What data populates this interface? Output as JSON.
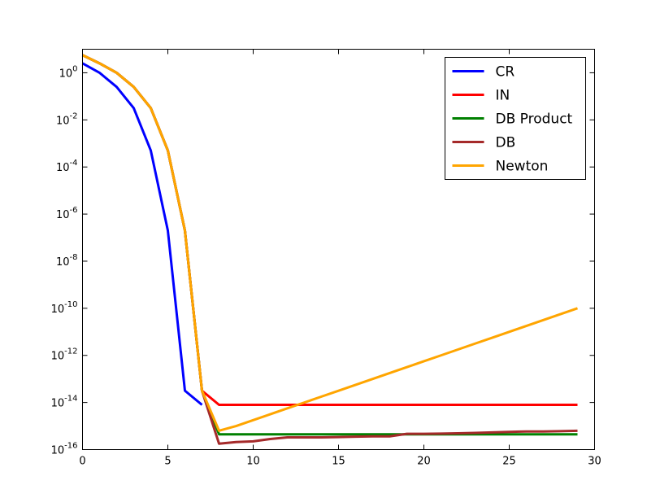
{
  "chart_data": {
    "type": "line",
    "title": "",
    "xlabel": "",
    "ylabel": "",
    "xlim": [
      0,
      30
    ],
    "ylim_exp": [
      -16,
      1
    ],
    "y_scale": "log",
    "grid": false,
    "legend_position": "top-right",
    "x_ticks": [
      "0",
      "5",
      "10",
      "15",
      "20",
      "25",
      "30"
    ],
    "y_ticks": [
      {
        "base": "10",
        "exp": "-16"
      },
      {
        "base": "10",
        "exp": "-14"
      },
      {
        "base": "10",
        "exp": "-12"
      },
      {
        "base": "10",
        "exp": "-10"
      },
      {
        "base": "10",
        "exp": "-8"
      },
      {
        "base": "10",
        "exp": "-6"
      },
      {
        "base": "10",
        "exp": "-4"
      },
      {
        "base": "10",
        "exp": "-2"
      },
      {
        "base": "10",
        "exp": "0"
      }
    ],
    "x": [
      0,
      1,
      2,
      3,
      4,
      5,
      6,
      7,
      8,
      9,
      10,
      11,
      12,
      13,
      14,
      15,
      16,
      17,
      18,
      19,
      20,
      21,
      22,
      23,
      24,
      25,
      26,
      27,
      28,
      29
    ],
    "series": [
      {
        "name": "CR",
        "color": "#0000ff",
        "y_exp": [
          0.4,
          0.0,
          -0.6,
          -1.5,
          -3.3,
          -6.7,
          -13.5,
          -14.1,
          null,
          null,
          null,
          null,
          null,
          null,
          null,
          null,
          null,
          null,
          null,
          null,
          null,
          null,
          null,
          null,
          null,
          null,
          null,
          null,
          null,
          null
        ]
      },
      {
        "name": "IN",
        "color": "#ff0000",
        "y_exp": [
          0.75,
          0.4,
          0.0,
          -0.6,
          -1.5,
          -3.3,
          -6.7,
          -13.5,
          -14.1,
          -14.1,
          -14.1,
          -14.1,
          -14.1,
          -14.1,
          -14.1,
          -14.1,
          -14.1,
          -14.1,
          -14.1,
          -14.1,
          -14.1,
          -14.1,
          -14.1,
          -14.1,
          -14.1,
          -14.1,
          -14.1,
          -14.1,
          -14.1,
          -14.1
        ]
      },
      {
        "name": "DB Product",
        "color": "#008000",
        "y_exp": [
          0.75,
          0.4,
          0.0,
          -0.6,
          -1.5,
          -3.3,
          -6.7,
          -13.5,
          -15.35,
          -15.35,
          -15.35,
          -15.35,
          -15.35,
          -15.35,
          -15.35,
          -15.35,
          -15.35,
          -15.35,
          -15.35,
          -15.35,
          -15.35,
          -15.35,
          -15.35,
          -15.35,
          -15.35,
          -15.35,
          -15.35,
          -15.35,
          -15.35,
          -15.35
        ]
      },
      {
        "name": "DB",
        "color": "#a52a2a",
        "y_exp": [
          0.75,
          0.4,
          0.0,
          -0.6,
          -1.5,
          -3.3,
          -6.7,
          -13.5,
          -15.75,
          -15.68,
          -15.65,
          -15.55,
          -15.48,
          -15.48,
          -15.48,
          -15.47,
          -15.45,
          -15.44,
          -15.44,
          -15.33,
          -15.33,
          -15.32,
          -15.31,
          -15.29,
          -15.27,
          -15.25,
          -15.23,
          -15.23,
          -15.22,
          -15.2
        ]
      },
      {
        "name": "Newton",
        "color": "#ffa500",
        "y_exp": [
          0.75,
          0.4,
          0.0,
          -0.6,
          -1.5,
          -3.3,
          -6.7,
          -13.5,
          -15.2,
          -15.0,
          -14.75,
          -14.5,
          -14.25,
          -14.0,
          -13.75,
          -13.5,
          -13.25,
          -13.0,
          -12.75,
          -12.5,
          -12.25,
          -12.0,
          -11.75,
          -11.5,
          -11.25,
          -11.0,
          -10.75,
          -10.5,
          -10.25,
          -10.0
        ]
      }
    ]
  }
}
